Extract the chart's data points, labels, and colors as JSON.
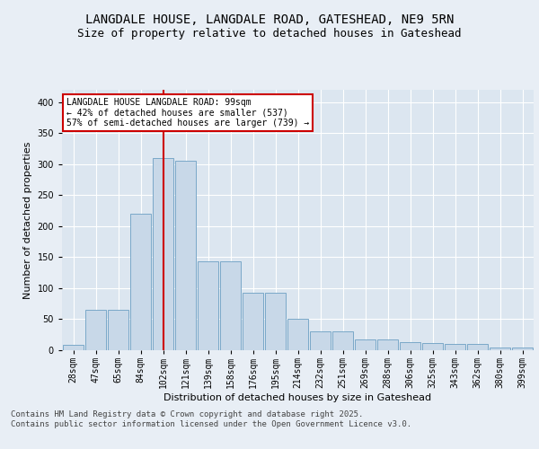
{
  "title_line1": "LANGDALE HOUSE, LANGDALE ROAD, GATESHEAD, NE9 5RN",
  "title_line2": "Size of property relative to detached houses in Gateshead",
  "xlabel": "Distribution of detached houses by size in Gateshead",
  "ylabel": "Number of detached properties",
  "categories": [
    "28sqm",
    "47sqm",
    "65sqm",
    "84sqm",
    "102sqm",
    "121sqm",
    "139sqm",
    "158sqm",
    "176sqm",
    "195sqm",
    "214sqm",
    "232sqm",
    "251sqm",
    "269sqm",
    "288sqm",
    "306sqm",
    "325sqm",
    "343sqm",
    "362sqm",
    "380sqm",
    "399sqm"
  ],
  "values": [
    8,
    65,
    65,
    220,
    310,
    305,
    143,
    143,
    92,
    92,
    50,
    30,
    30,
    18,
    18,
    13,
    11,
    10,
    10,
    5,
    5
  ],
  "bar_color": "#c8d8e8",
  "bar_edge_color": "#7aa8c8",
  "highlight_index": 4,
  "highlight_line_color": "#cc0000",
  "annotation_text": "LANGDALE HOUSE LANGDALE ROAD: 99sqm\n← 42% of detached houses are smaller (537)\n57% of semi-detached houses are larger (739) →",
  "annotation_box_color": "#ffffff",
  "annotation_box_edge": "#cc0000",
  "ylim": [
    0,
    420
  ],
  "yticks": [
    0,
    50,
    100,
    150,
    200,
    250,
    300,
    350,
    400
  ],
  "background_color": "#e8eef5",
  "plot_bg_color": "#dce6f0",
  "footer_text": "Contains HM Land Registry data © Crown copyright and database right 2025.\nContains public sector information licensed under the Open Government Licence v3.0.",
  "title_fontsize": 10,
  "subtitle_fontsize": 9,
  "axis_label_fontsize": 8,
  "tick_fontsize": 7,
  "annotation_fontsize": 7,
  "footer_fontsize": 6.5
}
